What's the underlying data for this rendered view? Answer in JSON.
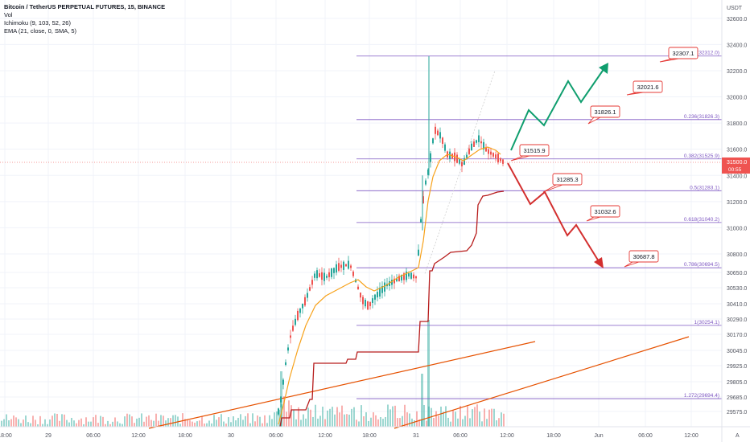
{
  "legend": {
    "title": "Bitcoin / TetherUS PERPETUAL FUTURES, 15, BINANCE",
    "vol": "Vol",
    "ichimoku": "Ichimoku (9, 103, 52, 26)",
    "ema": "EMA (21, close, 0, SMA, 5)"
  },
  "chart_data": {
    "type": "candlestick",
    "currency_label": "USDT",
    "ylim": [
      29480,
      32740
    ],
    "y_ticks": [
      32600.0,
      32400.0,
      32200.0,
      32000.0,
      31800.0,
      31600.0,
      31400.0,
      31200.0,
      31000.0,
      30800.0,
      30650.0,
      30530.0,
      30410.0,
      30290.0,
      30170.0,
      30045.0,
      29925.0,
      29805.0,
      29685.0,
      29575.0
    ],
    "x_ticks": [
      "18:00",
      "29",
      "06:00",
      "12:00",
      "18:00",
      "30",
      "06:00",
      "12:00",
      "18:00",
      "31",
      "06:00",
      "12:00",
      "18:00",
      "Jun",
      "06:00",
      "12:00"
    ],
    "current_price": {
      "value": "31500.0",
      "countdown": "00:55"
    },
    "fibonacci_levels": [
      {
        "label": "0(32312.0)",
        "value": 32312.0
      },
      {
        "label": "0.236(31826.3)",
        "value": 31826.3
      },
      {
        "label": "0.382(31525.9)",
        "value": 31525.9
      },
      {
        "label": "0.5(31283.1)",
        "value": 31283.1
      },
      {
        "label": "0.618(31040.2)",
        "value": 31040.2
      },
      {
        "label": "0.786(30694.5)",
        "value": 30694.5
      },
      {
        "label": "1(30254.1)",
        "value": 30254.1
      },
      {
        "label": "1.272(29694.4)",
        "value": 29694.4
      }
    ],
    "price_callouts": [
      "32307.1",
      "32021.6",
      "31826.1",
      "31515.9",
      "31285.3",
      "31032.6",
      "30687.8"
    ],
    "projected_paths": [
      {
        "direction": "up",
        "color": "#0f9e6e"
      },
      {
        "direction": "down",
        "color": "#d32f2f"
      }
    ],
    "colors": {
      "up": "#26a69a",
      "down": "#ef5350",
      "ema": "#f7a21b",
      "ichimoku": "#b71c1c",
      "trend": "#e65100",
      "fib": "#7e57c2",
      "callout": "#e53935"
    }
  },
  "footer_icon": "A"
}
